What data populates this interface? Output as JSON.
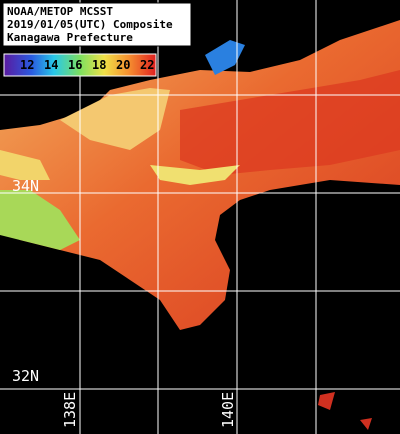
{
  "header": {
    "lines": [
      "NOAA/METOP MCSST",
      "2019/01/05(UTC) Composite",
      "Kanagawa Prefecture"
    ]
  },
  "colorbar": {
    "labels": [
      "12",
      "14",
      "16",
      "18",
      "20",
      "22"
    ]
  },
  "grid_labels": {
    "lat": [
      "34N",
      "32N"
    ],
    "lon": [
      "138E",
      "140E"
    ]
  }
}
